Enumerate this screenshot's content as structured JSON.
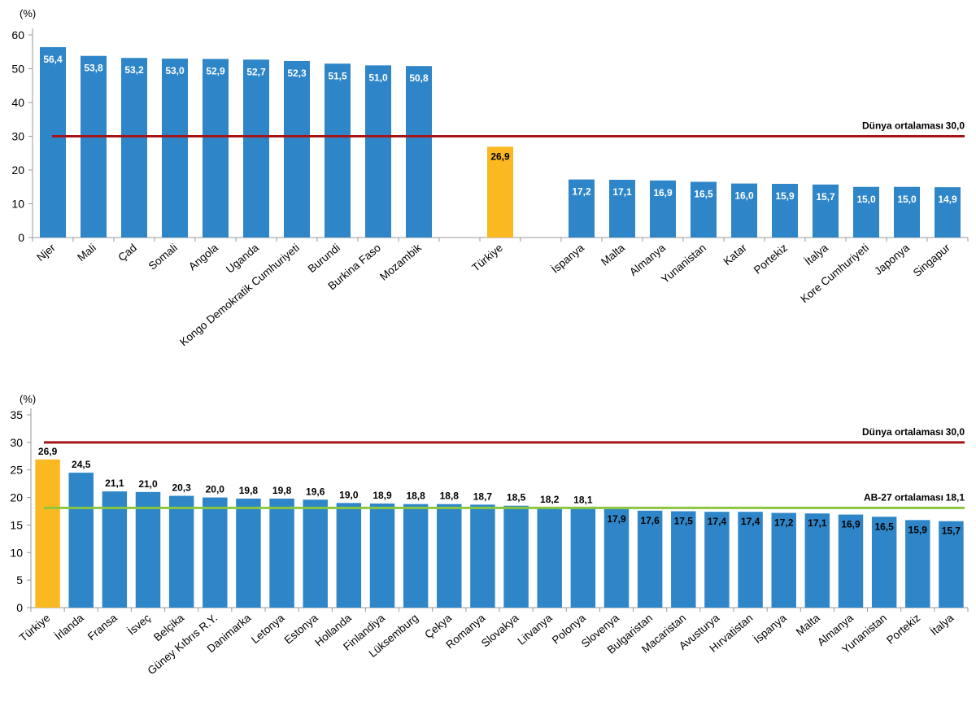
{
  "chart_data": [
    {
      "type": "bar",
      "unit_label": "(%)",
      "ylim": [
        0,
        60
      ],
      "yticks": [
        0,
        10,
        20,
        30,
        40,
        50,
        60
      ],
      "categories": [
        "Njer",
        "Mali",
        "Çad",
        "Somali",
        "Angola",
        "Uganda",
        "Kongo Demokratik Cumhuriyeti",
        "Burundi",
        "Burkina Faso",
        "Mozambik",
        "",
        "Türkiye",
        "",
        "İspanya",
        "Malta",
        "Almanya",
        "Yunanistan",
        "Katar",
        "Portekiz",
        "İtalya",
        "Kore Cumhuriyeti",
        "Japonya",
        "Singapur"
      ],
      "values": [
        56.4,
        53.8,
        53.2,
        53.0,
        52.9,
        52.7,
        52.3,
        51.5,
        51.0,
        50.8,
        null,
        26.9,
        null,
        17.2,
        17.1,
        16.9,
        16.5,
        16.0,
        15.9,
        15.7,
        15.0,
        15.0,
        14.9
      ],
      "value_labels": [
        "56,4",
        "53,8",
        "53,2",
        "53,0",
        "52,9",
        "52,7",
        "52,3",
        "51,5",
        "51,0",
        "50,8",
        "",
        "26,9",
        "",
        "17,2",
        "17,1",
        "16,9",
        "16,5",
        "16,0",
        "15,9",
        "15,7",
        "15,0",
        "15,0",
        "14,9"
      ],
      "highlight": "Türkiye",
      "bar_color": "#2E86C9",
      "highlight_color": "#FBB921",
      "reference_lines": [
        {
          "label": "Dünya ortalaması",
          "value": 30.0,
          "value_label": "30,0",
          "color": "#A51416"
        }
      ]
    },
    {
      "type": "bar",
      "unit_label": "(%)",
      "ylim": [
        0,
        35
      ],
      "yticks": [
        0,
        5,
        10,
        15,
        20,
        25,
        30,
        35
      ],
      "categories": [
        "Türkiye",
        "İrlanda",
        "Fransa",
        "İsveç",
        "Belçika",
        "Güney Kıbrıs R.Y.",
        "Danimarka",
        "Letonya",
        "Estonya",
        "Hollanda",
        "Finlandiya",
        "Lüksemburg",
        "Çekya",
        "Romanya",
        "Slovakya",
        "Litvanya",
        "Polonya",
        "Slovenya",
        "Bulgaristan",
        "Macaristan",
        "Avusturya",
        "Hırvatistan",
        "İspanya",
        "Malta",
        "Almanya",
        "Yunanistan",
        "Portekiz",
        "İtalya"
      ],
      "values": [
        26.9,
        24.5,
        21.1,
        21.0,
        20.3,
        20.0,
        19.8,
        19.8,
        19.6,
        19.0,
        18.9,
        18.8,
        18.8,
        18.7,
        18.5,
        18.2,
        18.1,
        17.9,
        17.6,
        17.5,
        17.4,
        17.4,
        17.2,
        17.1,
        16.9,
        16.5,
        15.9,
        15.7
      ],
      "value_labels": [
        "26,9",
        "24,5",
        "21,1",
        "21,0",
        "20,3",
        "20,0",
        "19,8",
        "19,8",
        "19,6",
        "19,0",
        "18,9",
        "18,8",
        "18,8",
        "18,7",
        "18,5",
        "18,2",
        "18,1",
        "17,9",
        "17,6",
        "17,5",
        "17,4",
        "17,4",
        "17,2",
        "17,1",
        "16,9",
        "16,5",
        "15,9",
        "15,7"
      ],
      "highlight": "Türkiye",
      "bar_color": "#2E86C9",
      "highlight_color": "#FBB921",
      "reference_lines": [
        {
          "label": "Dünya ortalaması",
          "value": 30.0,
          "value_label": "30,0",
          "color": "#A51416"
        },
        {
          "label": "AB-27 ortalaması",
          "value": 18.1,
          "value_label": "18,1",
          "color": "#8CC63F"
        }
      ]
    }
  ]
}
